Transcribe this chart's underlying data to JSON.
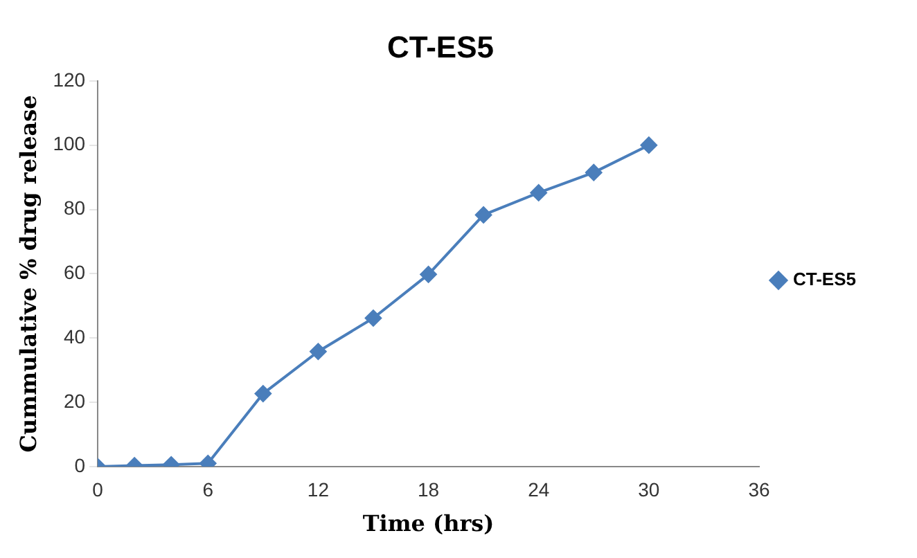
{
  "chart_data": {
    "type": "line",
    "title": "CT-ES5",
    "xlabel": "Time (hrs)",
    "ylabel": "Cummulative % drug release",
    "x": [
      0,
      2,
      4,
      6,
      9,
      12,
      15,
      18,
      21,
      24,
      27,
      30
    ],
    "series": [
      {
        "name": "CT-ES5",
        "color": "#4a7ebb",
        "values": [
          0,
          0.3,
          0.6,
          1,
          22.7,
          35.8,
          46.2,
          59.8,
          78.3,
          85.2,
          91.5,
          100
        ]
      }
    ],
    "xlim": [
      0,
      36
    ],
    "xticks": [
      0,
      6,
      12,
      18,
      24,
      30,
      36
    ],
    "ylim": [
      0,
      120
    ],
    "yticks": [
      0,
      20,
      40,
      60,
      80,
      100,
      120
    ],
    "grid": false,
    "legend": "right",
    "marker": "diamond",
    "line_style": "solid"
  }
}
